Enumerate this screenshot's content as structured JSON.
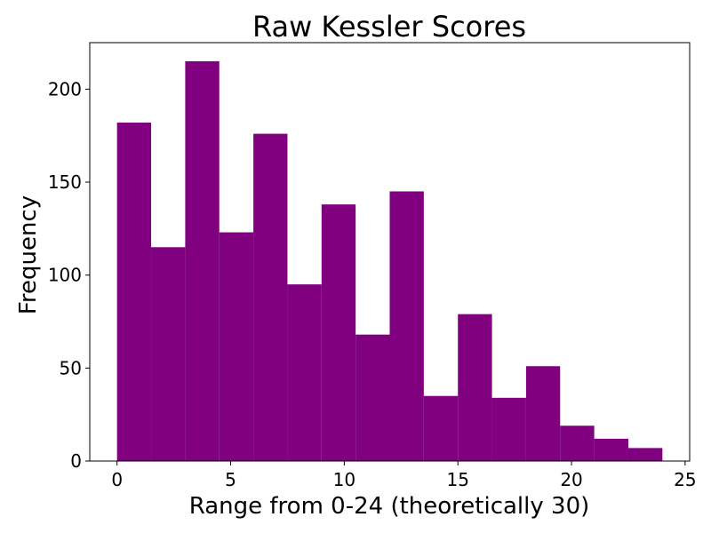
{
  "chart_data": {
    "type": "bar",
    "title": "Raw Kessler Scores",
    "xlabel": "Range from 0-24 (theoretically 30)",
    "ylabel": "Frequency",
    "xlim": [
      -1.2,
      25.2
    ],
    "ylim": [
      0,
      225
    ],
    "grid": false,
    "bins": [
      {
        "x0": 0.0,
        "x1": 1.5,
        "value": 182
      },
      {
        "x0": 1.5,
        "x1": 3.0,
        "value": 115
      },
      {
        "x0": 3.0,
        "x1": 4.5,
        "value": 215
      },
      {
        "x0": 4.5,
        "x1": 6.0,
        "value": 123
      },
      {
        "x0": 6.0,
        "x1": 7.5,
        "value": 176
      },
      {
        "x0": 7.5,
        "x1": 9.0,
        "value": 95
      },
      {
        "x0": 9.0,
        "x1": 10.5,
        "value": 138
      },
      {
        "x0": 10.5,
        "x1": 12.0,
        "value": 68
      },
      {
        "x0": 12.0,
        "x1": 13.5,
        "value": 145
      },
      {
        "x0": 13.5,
        "x1": 15.0,
        "value": 35
      },
      {
        "x0": 15.0,
        "x1": 16.5,
        "value": 79
      },
      {
        "x0": 16.5,
        "x1": 18.0,
        "value": 34
      },
      {
        "x0": 18.0,
        "x1": 19.5,
        "value": 51
      },
      {
        "x0": 19.5,
        "x1": 21.0,
        "value": 19
      },
      {
        "x0": 21.0,
        "x1": 22.5,
        "value": 12
      },
      {
        "x0": 22.5,
        "x1": 24.0,
        "value": 7
      }
    ],
    "xticks": [
      0,
      5,
      10,
      15,
      20,
      25
    ],
    "yticks": [
      0,
      50,
      100,
      150,
      200
    ],
    "colors": {
      "bar": "#800080",
      "axis": "#000000"
    }
  }
}
